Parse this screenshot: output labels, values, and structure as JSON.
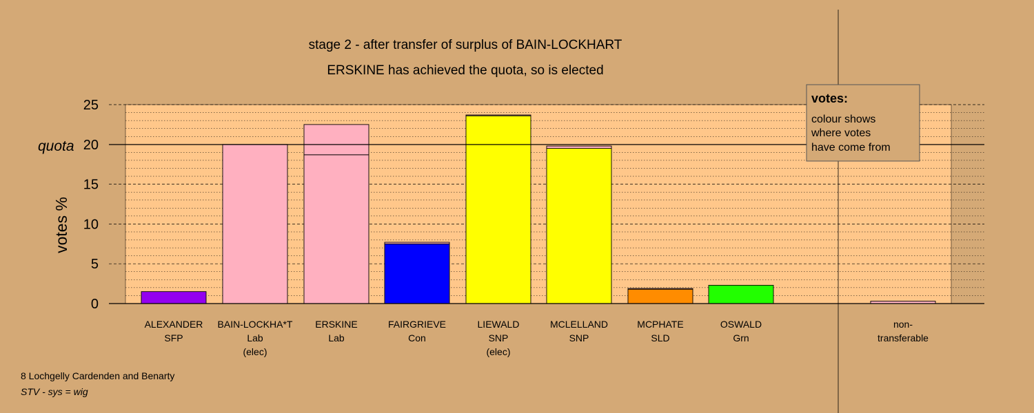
{
  "chart_data": {
    "type": "bar",
    "title": "stage 2 - after transfer of surplus of BAIN-LOCKHART",
    "subtitle": "ERSKINE has achieved the quota, so is elected",
    "ylabel": "votes %",
    "ylim": [
      0,
      25
    ],
    "yticks": [
      0,
      5,
      10,
      15,
      20,
      25
    ],
    "quota": 20,
    "quota_label": "quota",
    "categories": [
      {
        "name": "ALEXANDER",
        "party": "SFP",
        "note": ""
      },
      {
        "name": "BAIN-LOCKHA*T",
        "party": "Lab",
        "note": "(elec)"
      },
      {
        "name": "ERSKINE",
        "party": "Lab",
        "note": ""
      },
      {
        "name": "FAIRGRIEVE",
        "party": "Con",
        "note": ""
      },
      {
        "name": "LIEWALD",
        "party": "SNP",
        "note": "(elec)"
      },
      {
        "name": "MCLELLAND",
        "party": "SNP",
        "note": ""
      },
      {
        "name": "MCPHATE",
        "party": "SLD",
        "note": ""
      },
      {
        "name": "OSWALD",
        "party": "Grn",
        "note": ""
      },
      {
        "name": "non-",
        "party": "transferable",
        "note": ""
      }
    ],
    "bars": [
      {
        "segments": [
          {
            "value": 1.5,
            "color": "#9400f0"
          }
        ]
      },
      {
        "segments": [
          {
            "value": 20.0,
            "color": "#ffb0c0"
          }
        ]
      },
      {
        "segments": [
          {
            "value": 18.7,
            "color": "#ffb0c0"
          },
          {
            "value": 3.8,
            "color": "#ffb0c0"
          }
        ]
      },
      {
        "segments": [
          {
            "value": 7.5,
            "color": "#0000ff"
          },
          {
            "value": 0.2,
            "color": "#ffb0c0"
          }
        ]
      },
      {
        "segments": [
          {
            "value": 23.6,
            "color": "#ffff00"
          },
          {
            "value": 0.1,
            "color": "#ffb0c0"
          }
        ]
      },
      {
        "segments": [
          {
            "value": 19.5,
            "color": "#ffff00"
          },
          {
            "value": 0.3,
            "color": "#ffb0c0"
          }
        ]
      },
      {
        "segments": [
          {
            "value": 1.8,
            "color": "#ff8c00"
          },
          {
            "value": 0.1,
            "color": "#ffb0c0"
          }
        ]
      },
      {
        "segments": [
          {
            "value": 2.3,
            "color": "#22ff00"
          }
        ]
      },
      {
        "segments": [
          {
            "value": 0.3,
            "color": "#ffb0c0"
          }
        ]
      }
    ],
    "grid": true,
    "legend_placement": "top-right",
    "colors": {
      "background": "#d4a976",
      "plot_area": "#ffc78a"
    }
  },
  "legend": {
    "title": "votes:",
    "line1": "colour shows",
    "line2": "where votes",
    "line3": "have come from"
  },
  "footer": {
    "ward": "8 Lochgelly Cardenden and Benarty",
    "system": "STV - sys = wig"
  }
}
